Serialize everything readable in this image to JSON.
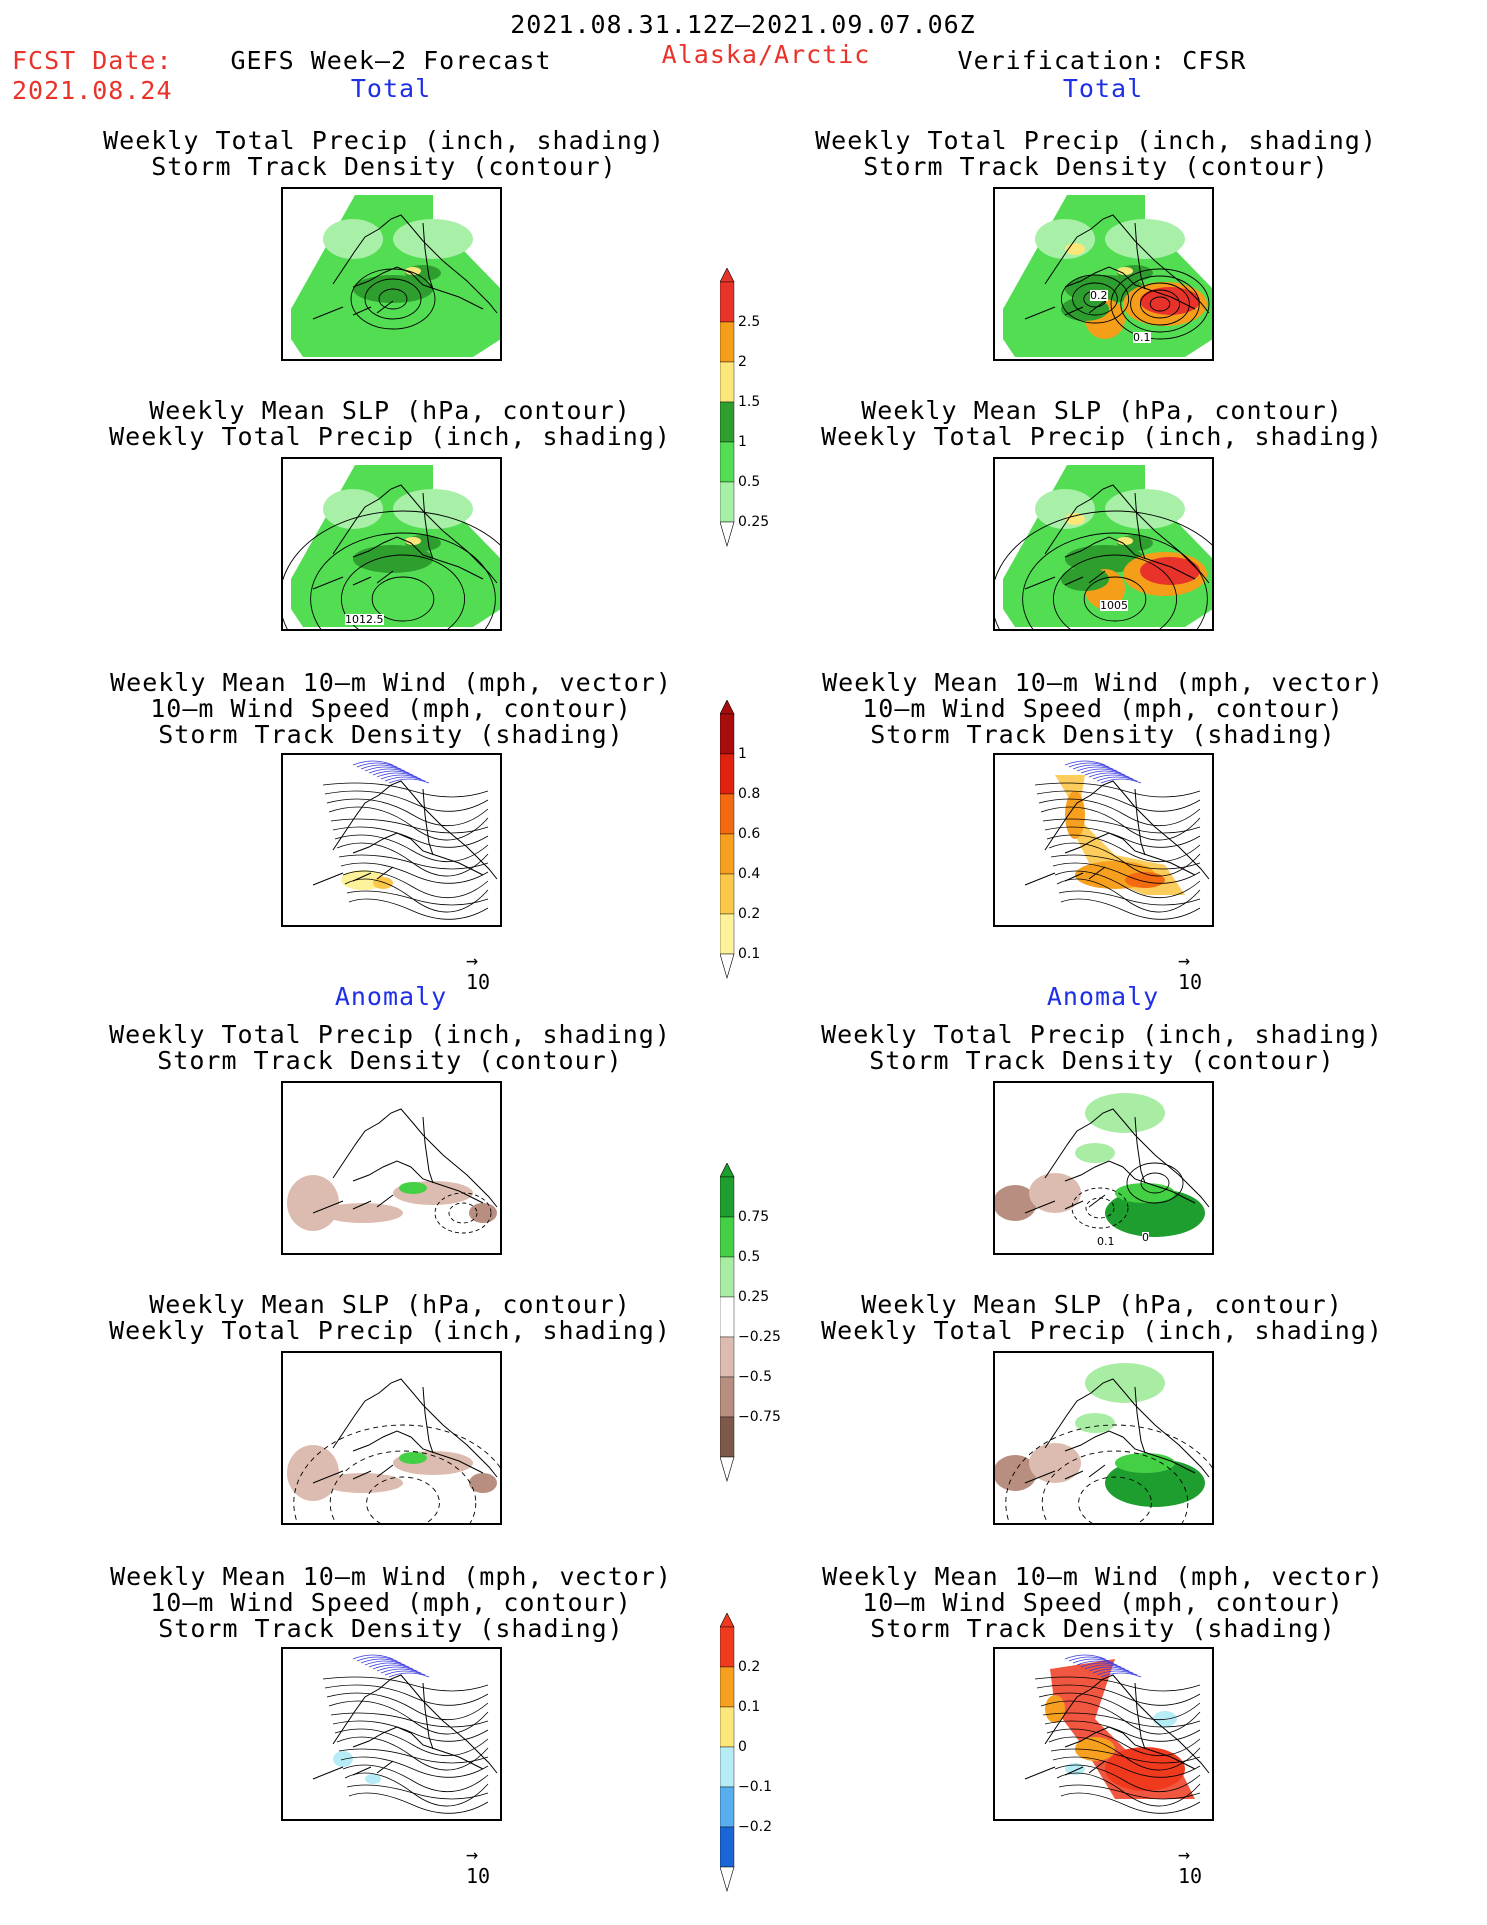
{
  "header": {
    "period": "2021.08.31.12Z–2021.09.07.06Z",
    "fcst_date_label": "FCST Date:",
    "fcst_date": "2021.08.24",
    "forecast": "GEFS Week–2 Forecast",
    "region": "Alaska/Arctic",
    "verification": "Verification: CFSR"
  },
  "sections": {
    "total": "Total",
    "anomaly": "Anomaly"
  },
  "panels": {
    "precip_track": [
      "Weekly Total Precip (inch, shading)",
      "Storm Track Density (contour)"
    ],
    "slp_precip": [
      "Weekly Mean SLP (hPa, contour)",
      "Weekly Total Precip (inch, shading)"
    ],
    "wind_track": [
      "Weekly Mean 10–m Wind (mph, vector)",
      "10–m Wind Speed (mph, contour)",
      "Storm Track Density (shading)"
    ]
  },
  "map_labels": {
    "slp_fcst": "1012.5",
    "slp_verif": "1005",
    "track_verif_a": "0.2",
    "track_verif_b": "0.1",
    "anom_track_a": "0.1",
    "anom_track_b": "0"
  },
  "vector_ref": "10",
  "colorbars": {
    "precip_total": {
      "labels": [
        "2.5",
        "2",
        "1.5",
        "1",
        "0.5",
        "0.25"
      ],
      "colors": [
        "#e8332b",
        "#f59e1a",
        "#fde67a",
        "#2e9e2e",
        "#53dd53",
        "#a8f0a8"
      ]
    },
    "track_total": {
      "labels": [
        "1",
        "0.8",
        "0.6",
        "0.4",
        "0.2",
        "0.1"
      ],
      "colors": [
        "#a80d0d",
        "#e0220f",
        "#f46a10",
        "#f7a020",
        "#fcc84a",
        "#fdf29a"
      ]
    },
    "precip_anom": {
      "labels": [
        "0.75",
        "0.5",
        "0.25",
        "−0.25",
        "−0.5",
        "−0.75"
      ],
      "colors": [
        "#1e9e2e",
        "#44d044",
        "#a9eca4",
        "#ffffff",
        "#dcbcb0",
        "#b88e80",
        "#7e5848"
      ]
    },
    "track_anom": {
      "labels": [
        "0.2",
        "0.1",
        "0",
        "−0.1",
        "−0.2"
      ],
      "colors": [
        "#ef3a1e",
        "#f7a020",
        "#fde67a",
        "#b6ecf6",
        "#58aeee",
        "#1a66d6"
      ]
    }
  }
}
